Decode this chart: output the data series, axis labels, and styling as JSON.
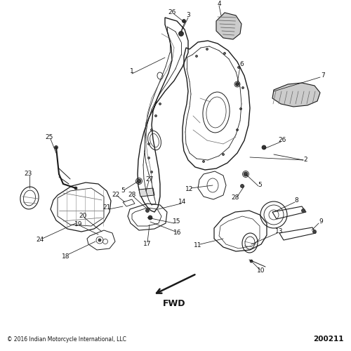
{
  "bg_color": "#ffffff",
  "line_color": "#1a1a1a",
  "text_color": "#111111",
  "copyright": "© 2016 Indian Motorcycle International, LLC",
  "part_number": "200211",
  "fwd_label": "FWD",
  "fontsize_labels": 6.5,
  "fontsize_copyright": 5.5,
  "fontsize_partnum": 7.5,
  "fontsize_fwd": 9
}
